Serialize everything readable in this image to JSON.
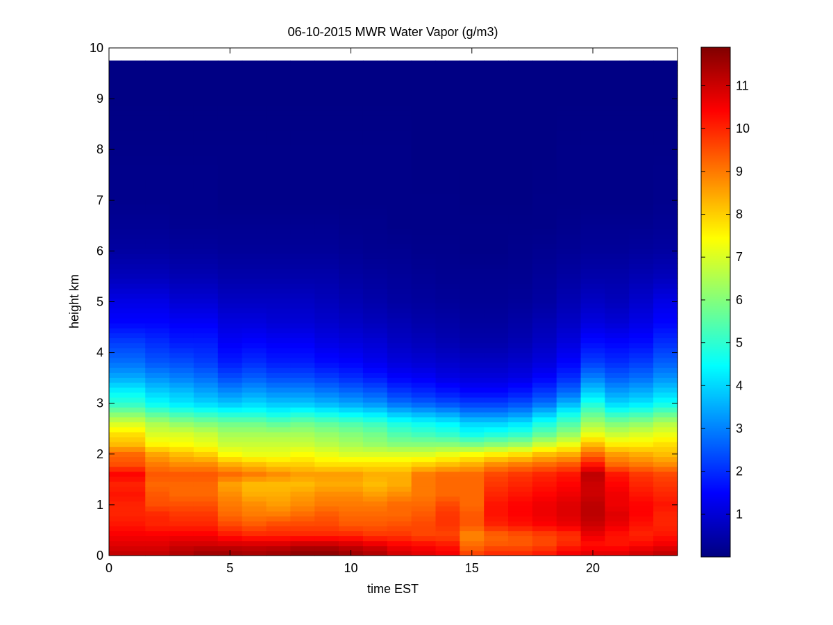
{
  "chart_data": {
    "type": "heatmap",
    "title": "06-10-2015 MWR Water Vapor (g/m3)",
    "xlabel": "time EST",
    "ylabel": "height km",
    "xlim": [
      0,
      23.5
    ],
    "ylim": [
      0,
      10
    ],
    "x_ticks": [
      0,
      5,
      10,
      15,
      20
    ],
    "y_ticks": [
      0,
      1,
      2,
      3,
      4,
      5,
      6,
      7,
      8,
      9,
      10
    ],
    "colorbar": {
      "colormap": "jet",
      "clim": [
        0,
        11.9
      ],
      "ticks": [
        1,
        2,
        3,
        4,
        5,
        6,
        7,
        8,
        9,
        10,
        11
      ]
    },
    "x_centers": [
      0,
      1,
      2,
      3,
      4,
      5,
      6,
      7,
      8,
      9,
      10,
      11,
      12,
      13,
      14,
      15,
      16,
      17,
      18,
      19,
      20,
      21,
      22,
      23
    ],
    "height_top": 9.75,
    "profile_heights": [
      0,
      0.1,
      0.2,
      0.4,
      0.6,
      0.8,
      1.0,
      1.2,
      1.4,
      1.6,
      1.8,
      2.0,
      2.2,
      2.4,
      2.6,
      2.8,
      3.0,
      3.2,
      3.5,
      3.8,
      4.2,
      4.6,
      5.0,
      5.5,
      6.0,
      6.5,
      7.0,
      8.0,
      9.0,
      9.75
    ],
    "profiles": [
      [
        11.2,
        11.0,
        10.8,
        10.5,
        10.2,
        10.0,
        10.0,
        10.2,
        10.0,
        10.4,
        9.5,
        9.2,
        8.2,
        7.8,
        7.0,
        6.0,
        5.0,
        4.5,
        3.5,
        2.8,
        2.2,
        1.5,
        1.2,
        0.7,
        0.4,
        0.25,
        0.15,
        0.1,
        0.05,
        0.05
      ],
      [
        11.2,
        11.0,
        10.8,
        10.5,
        10.2,
        10.0,
        10.0,
        10.2,
        10.0,
        10.4,
        9.5,
        9.2,
        8.2,
        7.8,
        7.0,
        6.0,
        5.0,
        4.5,
        3.5,
        2.8,
        2.2,
        1.5,
        1.2,
        0.7,
        0.4,
        0.25,
        0.15,
        0.1,
        0.05,
        0.05
      ],
      [
        11.2,
        11.0,
        10.8,
        10.5,
        10.0,
        10.0,
        9.5,
        9.4,
        9.2,
        9.4,
        9.0,
        8.5,
        7.5,
        7.0,
        6.5,
        5.5,
        4.5,
        4.0,
        3.2,
        2.5,
        2.0,
        1.5,
        1.2,
        0.7,
        0.4,
        0.25,
        0.15,
        0.1,
        0.05,
        0.05
      ],
      [
        11.4,
        11.2,
        11.0,
        10.5,
        10.0,
        9.8,
        9.5,
        9.2,
        9.2,
        9.4,
        8.8,
        8.2,
        7.4,
        7.0,
        6.2,
        5.2,
        4.2,
        3.8,
        3.0,
        2.4,
        1.8,
        1.4,
        1.0,
        0.6,
        0.35,
        0.2,
        0.15,
        0.1,
        0.05,
        0.05
      ],
      [
        11.6,
        11.4,
        11.0,
        10.5,
        10.0,
        9.8,
        9.5,
        9.2,
        9.2,
        9.4,
        8.8,
        8.0,
        7.2,
        6.8,
        6.0,
        5.0,
        4.0,
        3.5,
        2.8,
        2.2,
        1.8,
        1.4,
        1.0,
        0.6,
        0.35,
        0.2,
        0.15,
        0.1,
        0.05,
        0.05
      ],
      [
        11.6,
        11.4,
        11.0,
        10.2,
        9.6,
        9.2,
        9.0,
        8.8,
        8.5,
        9.2,
        8.4,
        7.4,
        6.8,
        6.4,
        5.8,
        4.8,
        3.8,
        3.2,
        2.4,
        1.8,
        1.4,
        1.1,
        0.8,
        0.5,
        0.3,
        0.2,
        0.1,
        0.1,
        0.05,
        0.05
      ],
      [
        11.5,
        11.3,
        11.0,
        10.0,
        9.4,
        9.0,
        8.8,
        8.4,
        8.2,
        9.0,
        8.2,
        7.2,
        6.8,
        6.4,
        5.8,
        4.8,
        4.0,
        3.4,
        2.6,
        2.0,
        1.5,
        1.1,
        0.8,
        0.5,
        0.3,
        0.2,
        0.1,
        0.1,
        0.05,
        0.05
      ],
      [
        11.6,
        11.4,
        11.0,
        10.0,
        9.6,
        9.0,
        8.6,
        8.4,
        8.2,
        8.8,
        8.0,
        7.2,
        6.8,
        6.4,
        5.6,
        4.6,
        3.8,
        3.2,
        2.4,
        1.8,
        1.4,
        1.0,
        0.8,
        0.5,
        0.3,
        0.2,
        0.1,
        0.1,
        0.05,
        0.05
      ],
      [
        11.8,
        11.6,
        11.2,
        10.0,
        9.6,
        9.2,
        8.8,
        8.6,
        8.2,
        8.6,
        8.0,
        7.4,
        6.8,
        6.4,
        5.8,
        4.8,
        3.8,
        3.2,
        2.4,
        1.8,
        1.4,
        1.0,
        0.8,
        0.5,
        0.3,
        0.2,
        0.1,
        0.1,
        0.05,
        0.05
      ],
      [
        11.8,
        11.6,
        11.2,
        10.0,
        9.6,
        9.4,
        9.0,
        8.8,
        8.4,
        8.6,
        7.8,
        7.2,
        6.6,
        6.2,
        5.6,
        4.6,
        3.6,
        3.0,
        2.2,
        1.6,
        1.2,
        0.9,
        0.7,
        0.5,
        0.3,
        0.2,
        0.1,
        0.1,
        0.05,
        0.05
      ],
      [
        11.6,
        11.4,
        11.0,
        10.0,
        9.4,
        9.2,
        9.0,
        8.8,
        8.4,
        8.6,
        7.8,
        7.0,
        6.4,
        6.0,
        5.4,
        4.4,
        3.4,
        2.8,
        2.0,
        1.5,
        1.1,
        0.8,
        0.6,
        0.4,
        0.25,
        0.15,
        0.1,
        0.1,
        0.05,
        0.05
      ],
      [
        11.4,
        11.2,
        10.8,
        9.8,
        9.4,
        9.2,
        9.0,
        8.6,
        8.2,
        8.4,
        7.8,
        7.0,
        6.2,
        5.8,
        5.2,
        4.2,
        3.2,
        2.6,
        1.8,
        1.3,
        1.0,
        0.7,
        0.5,
        0.35,
        0.2,
        0.15,
        0.1,
        0.1,
        0.05,
        0.05
      ],
      [
        11.0,
        10.8,
        10.5,
        9.8,
        9.5,
        9.2,
        9.2,
        8.8,
        8.4,
        8.4,
        7.8,
        7.0,
        6.0,
        5.4,
        4.8,
        3.8,
        2.8,
        2.2,
        1.5,
        1.1,
        0.8,
        0.6,
        0.4,
        0.3,
        0.2,
        0.1,
        0.1,
        0.1,
        0.05,
        0.05
      ],
      [
        10.8,
        10.6,
        10.4,
        9.6,
        9.6,
        9.4,
        9.2,
        9.0,
        9.0,
        9.0,
        8.0,
        7.0,
        6.0,
        5.2,
        4.6,
        3.6,
        2.6,
        2.0,
        1.4,
        1.0,
        0.7,
        0.5,
        0.35,
        0.25,
        0.15,
        0.1,
        0.1,
        0.05,
        0.05,
        0.05
      ],
      [
        10.6,
        10.4,
        10.2,
        9.6,
        9.8,
        9.8,
        9.6,
        9.2,
        9.2,
        9.2,
        8.2,
        7.2,
        6.0,
        5.0,
        4.4,
        3.4,
        2.4,
        1.8,
        1.2,
        0.9,
        0.6,
        0.45,
        0.3,
        0.2,
        0.15,
        0.1,
        0.1,
        0.05,
        0.05,
        0.05
      ],
      [
        9.8,
        9.4,
        9.2,
        8.8,
        9.4,
        9.4,
        9.2,
        9.2,
        9.2,
        9.2,
        8.4,
        7.4,
        5.8,
        4.6,
        4.0,
        3.0,
        2.2,
        1.6,
        1.1,
        0.8,
        0.5,
        0.35,
        0.25,
        0.2,
        0.1,
        0.1,
        0.05,
        0.05,
        0.05,
        0.05
      ],
      [
        10.0,
        9.8,
        9.4,
        9.2,
        10.0,
        10.2,
        10.2,
        10.0,
        9.8,
        9.6,
        8.8,
        7.6,
        6.0,
        4.8,
        4.0,
        3.0,
        2.2,
        1.6,
        1.1,
        0.8,
        0.5,
        0.35,
        0.25,
        0.2,
        0.1,
        0.1,
        0.05,
        0.05,
        0.05,
        0.05
      ],
      [
        10.0,
        9.8,
        9.4,
        9.4,
        10.2,
        10.4,
        10.4,
        10.2,
        10.0,
        9.8,
        9.0,
        7.8,
        6.2,
        5.0,
        4.2,
        3.2,
        2.4,
        1.8,
        1.2,
        0.9,
        0.6,
        0.45,
        0.3,
        0.2,
        0.15,
        0.1,
        0.05,
        0.05,
        0.05,
        0.05
      ],
      [
        10.2,
        10.0,
        9.6,
        9.6,
        10.4,
        10.6,
        10.6,
        10.4,
        10.2,
        10.0,
        9.2,
        8.2,
        6.8,
        5.6,
        4.8,
        3.8,
        2.8,
        2.2,
        1.5,
        1.1,
        0.8,
        0.6,
        0.4,
        0.3,
        0.2,
        0.1,
        0.1,
        0.05,
        0.05,
        0.05
      ],
      [
        10.6,
        10.4,
        10.0,
        9.8,
        10.6,
        10.8,
        10.8,
        10.6,
        10.4,
        10.2,
        9.4,
        8.4,
        7.2,
        6.2,
        5.4,
        4.6,
        3.6,
        2.8,
        2.0,
        1.5,
        1.1,
        0.8,
        0.6,
        0.4,
        0.25,
        0.15,
        0.1,
        0.1,
        0.05,
        0.05
      ],
      [
        10.8,
        10.6,
        10.2,
        10.6,
        11.0,
        11.2,
        11.2,
        11.0,
        11.0,
        11.2,
        10.2,
        9.2,
        8.2,
        7.2,
        6.4,
        5.6,
        4.8,
        4.0,
        3.0,
        2.2,
        1.6,
        1.1,
        0.8,
        0.5,
        0.3,
        0.2,
        0.1,
        0.1,
        0.05,
        0.05
      ],
      [
        10.8,
        10.6,
        10.2,
        10.2,
        10.6,
        10.8,
        10.6,
        10.6,
        10.4,
        10.2,
        9.2,
        8.6,
        7.6,
        6.8,
        6.0,
        5.0,
        4.0,
        3.4,
        2.6,
        2.0,
        1.5,
        1.0,
        0.7,
        0.5,
        0.3,
        0.2,
        0.1,
        0.1,
        0.05,
        0.05
      ],
      [
        11.0,
        10.8,
        10.4,
        10.0,
        10.2,
        10.4,
        10.4,
        10.2,
        10.0,
        9.8,
        9.0,
        8.4,
        7.6,
        7.0,
        6.2,
        5.2,
        4.2,
        3.6,
        2.8,
        2.2,
        1.6,
        1.2,
        0.9,
        0.6,
        0.35,
        0.2,
        0.1,
        0.1,
        0.05,
        0.05
      ],
      [
        11.2,
        11.0,
        10.6,
        10.2,
        10.0,
        10.0,
        10.2,
        10.0,
        9.8,
        9.6,
        8.8,
        8.2,
        7.8,
        7.2,
        6.6,
        5.6,
        4.6,
        4.0,
        3.2,
        2.6,
        2.0,
        1.5,
        1.2,
        0.7,
        0.4,
        0.25,
        0.15,
        0.1,
        0.05,
        0.05
      ]
    ]
  }
}
